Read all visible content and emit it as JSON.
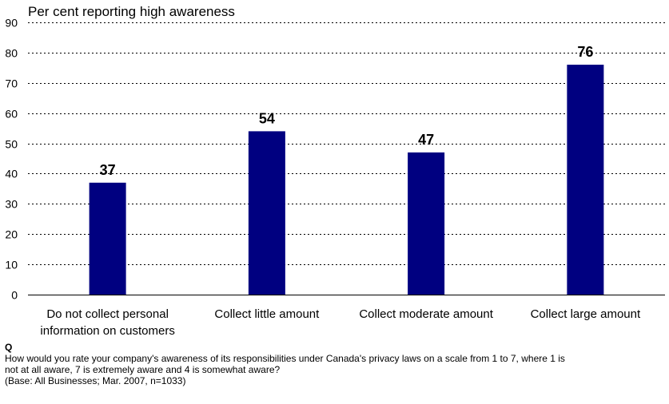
{
  "chart_data": {
    "type": "bar",
    "title": "Per cent reporting high awareness",
    "categories": [
      [
        "Do not collect personal",
        "information on customers"
      ],
      [
        "Collect little amount"
      ],
      [
        "Collect moderate amount"
      ],
      [
        "Collect large amount"
      ]
    ],
    "values": [
      37,
      54,
      47,
      76
    ],
    "ylim": [
      0,
      90
    ],
    "yticks": [
      0,
      10,
      20,
      30,
      40,
      50,
      60,
      70,
      80,
      90
    ],
    "grid": true,
    "bar_color": "#000080"
  },
  "footnote": {
    "q_label": "Q",
    "question_line1": "How would you rate your company's awareness of its responsibilities under Canada's privacy laws on a scale from 1 to 7, where 1 is",
    "question_line2": "not at all aware, 7 is extremely aware and 4 is somewhat aware?",
    "base": "(Base: All Businesses; Mar. 2007, n=1033)"
  }
}
